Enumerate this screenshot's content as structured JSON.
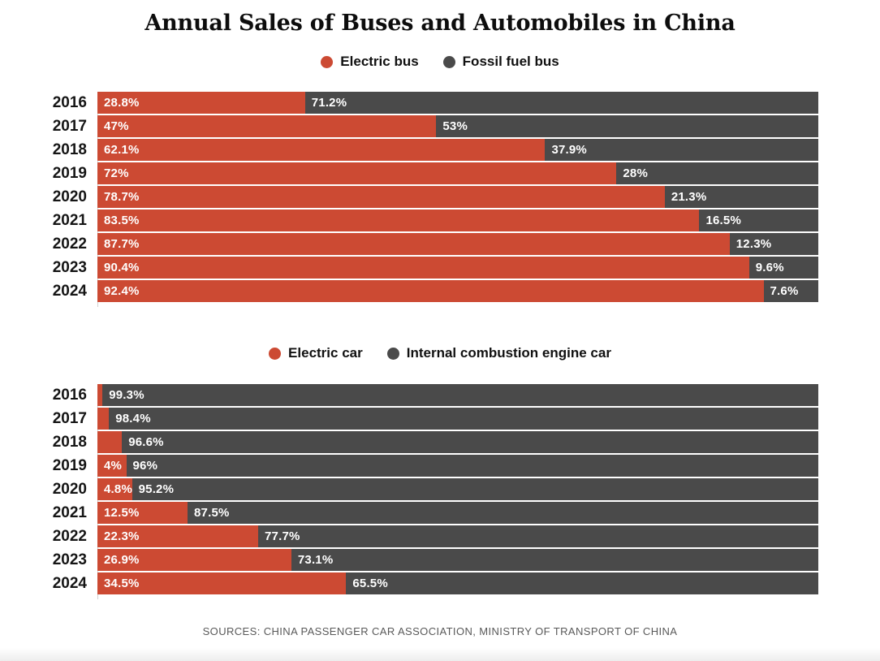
{
  "title": "Annual Sales of Buses and Automobiles in China",
  "source": "SOURCES: CHINA PASSENGER CAR ASSOCIATION, MINISTRY OF TRANSPORT OF CHINA",
  "colors": {
    "electric_red": "#cc4a33",
    "fossil_gray": "#4a4a4a",
    "axis_line": "#cfcfcf",
    "value_label": "#ffffff"
  },
  "chart_data": [
    {
      "type": "bar",
      "subtype": "stacked-horizontal-100percent",
      "name": "bus-sales-share",
      "categories": [
        "2016",
        "2017",
        "2018",
        "2019",
        "2020",
        "2021",
        "2022",
        "2023",
        "2024"
      ],
      "series": [
        {
          "name": "Electric bus",
          "color": "#cc4a33",
          "values": [
            28.8,
            47,
            62.1,
            72,
            78.7,
            83.5,
            87.7,
            90.4,
            92.4
          ],
          "labels": [
            "28.8%",
            "47%",
            "62.1%",
            "72%",
            "78.7%",
            "83.5%",
            "87.7%",
            "90.4%",
            "92.4%"
          ]
        },
        {
          "name": "Fossil fuel bus",
          "color": "#4a4a4a",
          "values": [
            71.2,
            53,
            37.9,
            28,
            21.3,
            16.5,
            12.3,
            9.6,
            7.6
          ],
          "labels": [
            "71.2%",
            "53%",
            "37.9%",
            "28%",
            "21.3%",
            "16.5%",
            "12.3%",
            "9.6%",
            "7.6%"
          ]
        }
      ],
      "xlim": [
        0,
        100
      ],
      "grid": false,
      "legend_position": "top",
      "value_labels_inside_bars": true
    },
    {
      "type": "bar",
      "subtype": "stacked-horizontal-100percent",
      "name": "car-sales-share",
      "categories": [
        "2016",
        "2017",
        "2018",
        "2019",
        "2020",
        "2021",
        "2022",
        "2023",
        "2024"
      ],
      "series": [
        {
          "name": "Electric car",
          "color": "#cc4a33",
          "values": [
            0.7,
            1.6,
            3.4,
            4,
            4.8,
            12.5,
            22.3,
            26.9,
            34.5
          ],
          "labels": [
            "",
            "",
            "",
            "4%",
            "4.8%",
            "12.5%",
            "22.3%",
            "26.9%",
            "34.5%"
          ]
        },
        {
          "name": "Internal combustion engine car",
          "color": "#4a4a4a",
          "values": [
            99.3,
            98.4,
            96.6,
            96,
            95.2,
            87.5,
            77.7,
            73.1,
            65.5
          ],
          "labels": [
            "99.3%",
            "98.4%",
            "96.6%",
            "96%",
            "95.2%",
            "87.5%",
            "77.7%",
            "73.1%",
            "65.5%"
          ]
        }
      ],
      "xlim": [
        0,
        100
      ],
      "grid": false,
      "legend_position": "top",
      "value_labels_inside_bars": true
    }
  ]
}
